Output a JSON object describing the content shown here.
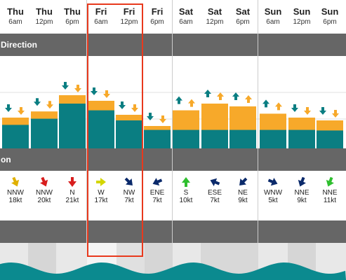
{
  "columns": [
    {
      "day": "Thu",
      "time": "6am"
    },
    {
      "day": "Thu",
      "time": "12pm"
    },
    {
      "day": "Thu",
      "time": "6pm"
    },
    {
      "day": "Fri",
      "time": "6am"
    },
    {
      "day": "Fri",
      "time": "12pm"
    },
    {
      "day": "Fri",
      "time": "6pm"
    },
    {
      "day": "Sat",
      "time": "6am"
    },
    {
      "day": "Sat",
      "time": "12pm"
    },
    {
      "day": "Sat",
      "time": "6pm"
    },
    {
      "day": "Sun",
      "time": "6am"
    },
    {
      "day": "Sun",
      "time": "12pm"
    },
    {
      "day": "Sun",
      "time": "6pm"
    }
  ],
  "sections": {
    "direction_label": "Direction",
    "wind_label": "on"
  },
  "wind": [
    {
      "dir": "NNW",
      "speed": "18kt",
      "color": "#e0b000"
    },
    {
      "dir": "NNW",
      "speed": "20kt",
      "color": "#d81e1e"
    },
    {
      "dir": "N",
      "speed": "21kt",
      "color": "#d81e1e"
    },
    {
      "dir": "W",
      "speed": "17kt",
      "color": "#d4d600"
    },
    {
      "dir": "NW",
      "speed": "7kt",
      "color": "#0b2a6b"
    },
    {
      "dir": "ENE",
      "speed": "7kt",
      "color": "#0b2a6b"
    },
    {
      "dir": "S",
      "speed": "10kt",
      "color": "#2fbf2f"
    },
    {
      "dir": "ESE",
      "speed": "7kt",
      "color": "#0b2a6b"
    },
    {
      "dir": "NE",
      "speed": "9kt",
      "color": "#0b2a6b"
    },
    {
      "dir": "WNW",
      "speed": "5kt",
      "color": "#0b2a6b"
    },
    {
      "dir": "NNE",
      "speed": "9kt",
      "color": "#0b2a6b"
    },
    {
      "dir": "NNE",
      "speed": "11kt",
      "color": "#2fbf2f"
    }
  ],
  "swell": [
    {
      "primary": 0.42,
      "total": 0.55
    },
    {
      "primary": 0.53,
      "total": 0.66
    },
    {
      "primary": 0.8,
      "total": 0.95
    },
    {
      "primary": 0.68,
      "total": 0.85
    },
    {
      "primary": 0.5,
      "total": 0.6
    },
    {
      "primary": 0.33,
      "total": 0.4
    },
    {
      "primary": 0.33,
      "total": 0.68
    },
    {
      "primary": 0.33,
      "total": 0.8
    },
    {
      "primary": 0.33,
      "total": 0.75
    },
    {
      "primary": 0.33,
      "total": 0.62
    },
    {
      "primary": 0.33,
      "total": 0.55
    },
    {
      "primary": 0.32,
      "total": 0.5
    }
  ],
  "colors": {
    "primary_swell": "#0a7e82",
    "secondary_swell": "#f7a92a",
    "tide": "#0b8a8f",
    "highlight": "#e8391d"
  }
}
